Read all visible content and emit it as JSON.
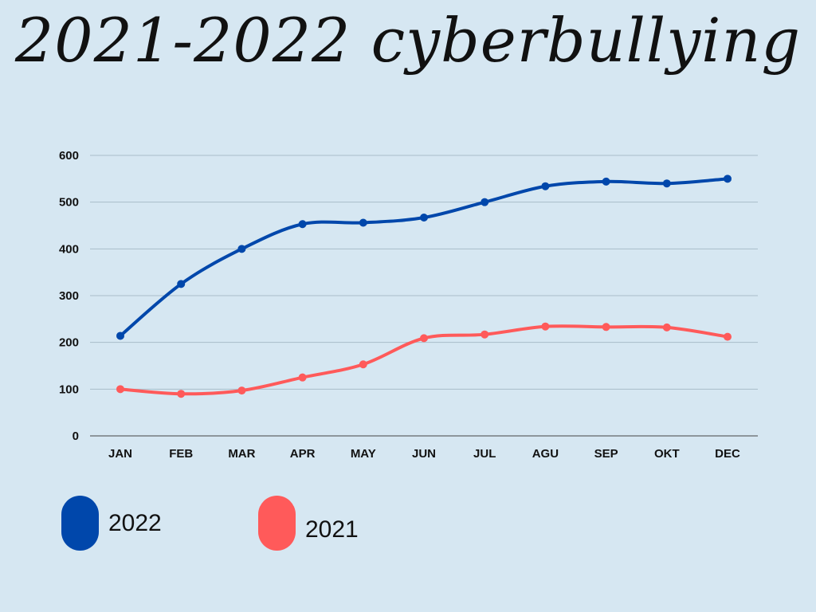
{
  "chart_data": {
    "type": "line",
    "title": "2021-2022 cyberbullying",
    "categories": [
      "JAN",
      "FEB",
      "MAR",
      "APR",
      "MAY",
      "JUN",
      "JUL",
      "AGU",
      "SEP",
      "OKT",
      "DEC"
    ],
    "series": [
      {
        "name": "2022",
        "color": "#0047ab",
        "values": [
          214,
          325,
          400,
          453,
          456,
          467,
          500,
          534,
          544,
          540,
          550
        ]
      },
      {
        "name": "2021",
        "color": "#ff5a5a",
        "values": [
          100,
          90,
          97,
          125,
          153,
          209,
          217,
          234,
          233,
          232,
          212
        ]
      }
    ],
    "y_ticks": [
      "0",
      "100",
      "200",
      "300",
      "400",
      "500",
      "600"
    ],
    "ylim": [
      0,
      600
    ],
    "grid": true,
    "legend_position": "bottom-left"
  }
}
